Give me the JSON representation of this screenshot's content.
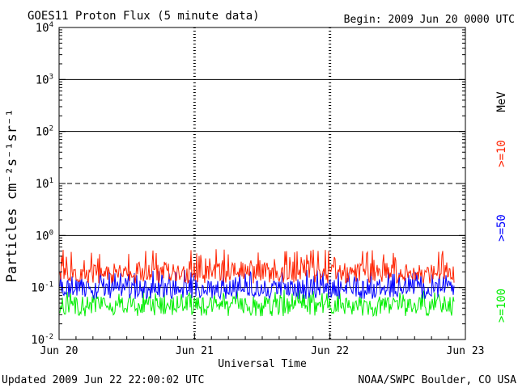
{
  "chart_data": {
    "type": "line",
    "title": "GOES11 Proton Flux (5 minute data)",
    "subtitle": "Begin: 2009 Jun 20 0000 UTC",
    "xlabel": "Universal Time",
    "ylabel": "Particles cm⁻²s⁻¹sr⁻¹",
    "y_scale": "log",
    "ylim": [
      0.01,
      10000
    ],
    "xlim": [
      "2009-06-20 00:00",
      "2009-06-23 00:00"
    ],
    "x_ticks": [
      "Jun 20",
      "Jun 21",
      "Jun 22",
      "Jun 23"
    ],
    "y_ticks": [
      {
        "base": "10",
        "exp": "-2"
      },
      {
        "base": "10",
        "exp": "-1"
      },
      {
        "base": "10",
        "exp": "0"
      },
      {
        "base": "10",
        "exp": "1"
      },
      {
        "base": "10",
        "exp": "2"
      },
      {
        "base": "10",
        "exp": "3"
      },
      {
        "base": "10",
        "exp": "4"
      }
    ],
    "thresholds": [
      {
        "value": 1000,
        "style": "solid"
      },
      {
        "value": 100,
        "style": "solid"
      },
      {
        "value": 10,
        "style": "dashed"
      },
      {
        "value": 1,
        "style": "solid"
      },
      {
        "value": 0.1,
        "style": "solid"
      }
    ],
    "unit_label": "MeV",
    "series": [
      {
        "name": ">=10",
        "color": "#ff2200",
        "typical_value": 0.2,
        "range": [
          0.12,
          0.55
        ]
      },
      {
        "name": ">=50",
        "color": "#0000ff",
        "typical_value": 0.1,
        "range": [
          0.06,
          0.22
        ]
      },
      {
        "name": ">=100",
        "color": "#00ee00",
        "typical_value": 0.05,
        "range": [
          0.028,
          0.09
        ]
      }
    ],
    "end": "2009-06-22 22:00"
  },
  "footer": {
    "updated": "Updated 2009 Jun 22 22:00:02 UTC",
    "credit": "NOAA/SWPC Boulder, CO USA"
  }
}
